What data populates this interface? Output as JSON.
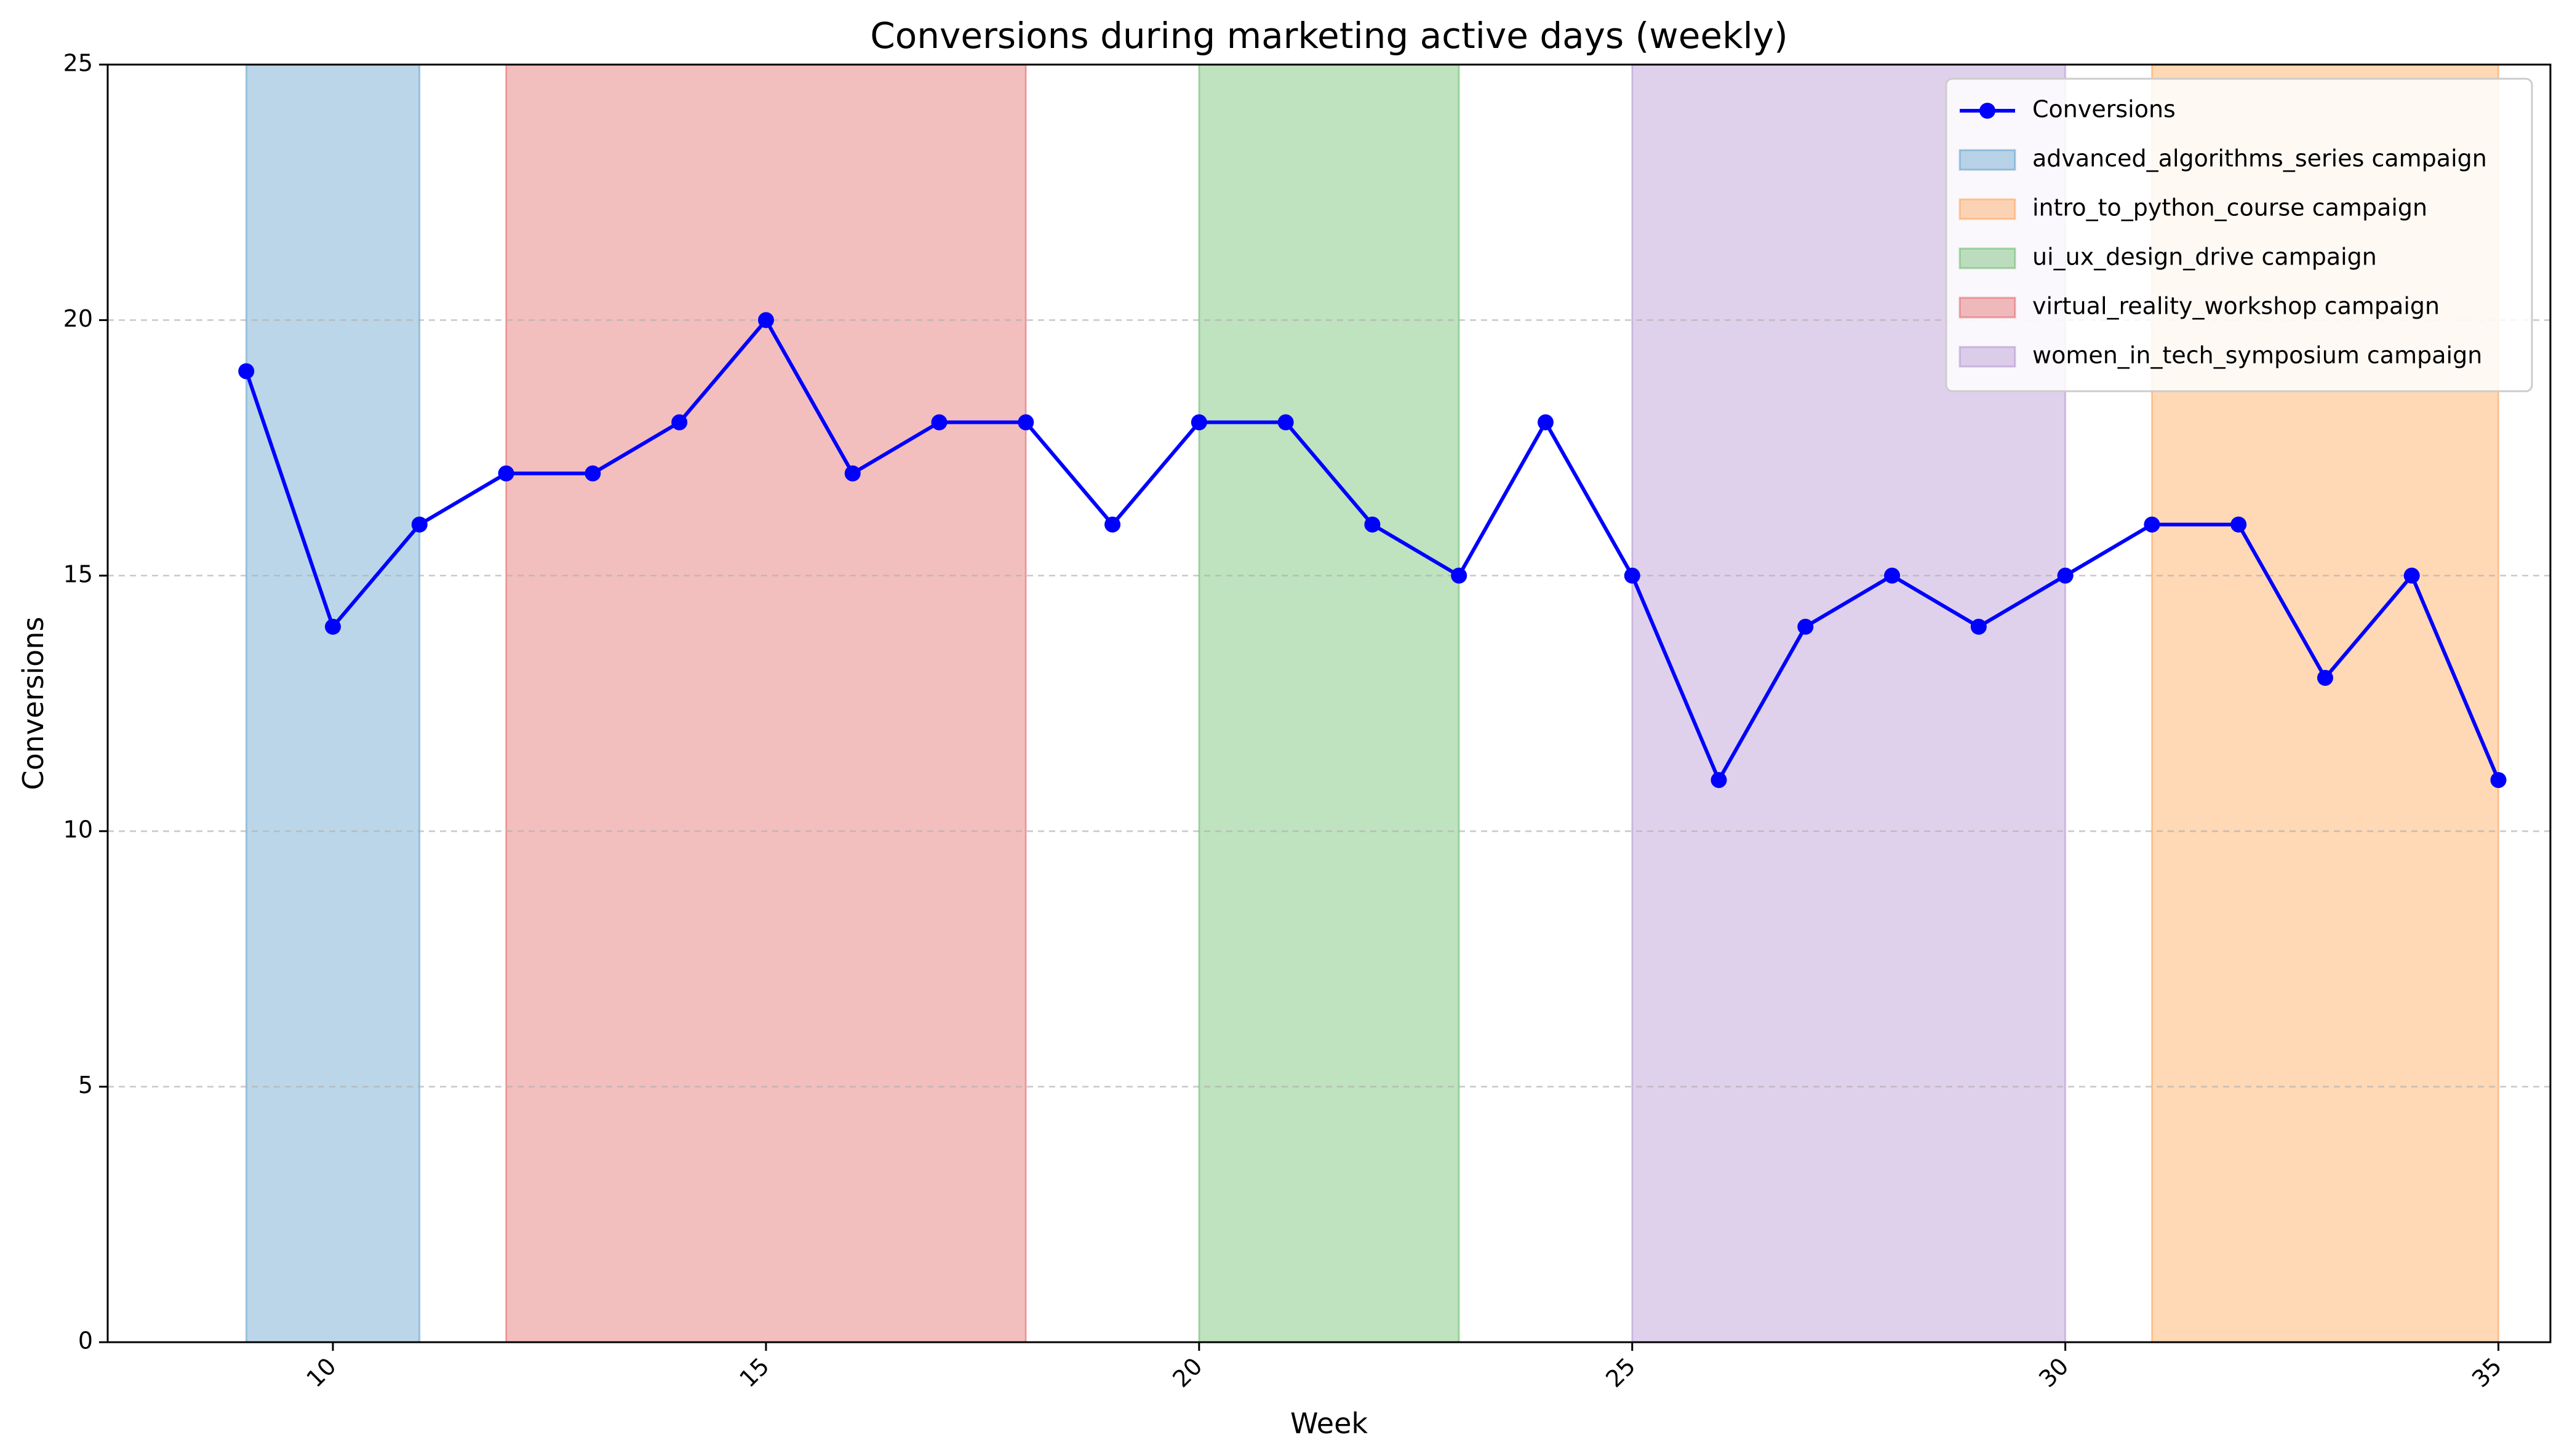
{
  "chart_data": {
    "type": "line",
    "title": "Conversions during marketing active days (weekly)",
    "xlabel": "Week",
    "ylabel": "Conversions",
    "xlim": [
      7.4,
      35.6
    ],
    "ylim": [
      0,
      25
    ],
    "xticks": [
      10,
      15,
      20,
      25,
      30,
      35
    ],
    "yticks": [
      0,
      5,
      10,
      15,
      20,
      25
    ],
    "grid": "y-dashed",
    "legend_position": "top-right",
    "series": [
      {
        "name": "Conversions",
        "color": "#0000ff",
        "x": [
          9,
          10,
          11,
          12,
          13,
          14,
          15,
          16,
          17,
          18,
          19,
          20,
          21,
          22,
          23,
          24,
          25,
          26,
          27,
          28,
          29,
          30,
          31,
          32,
          33,
          34,
          35
        ],
        "y": [
          19,
          14,
          16,
          17,
          17,
          18,
          20,
          17,
          18,
          18,
          16,
          18,
          18,
          16,
          15,
          18,
          15,
          11,
          14,
          15,
          14,
          15,
          16,
          16,
          13,
          15,
          11
        ]
      }
    ],
    "campaigns": [
      {
        "name": "advanced_algorithms_series campaign",
        "start": 9,
        "end": 11,
        "color": "#1f77b4"
      },
      {
        "name": "intro_to_python_course campaign",
        "start": 31,
        "end": 35,
        "color": "#ff7f0e"
      },
      {
        "name": "ui_ux_design_drive campaign",
        "start": 20,
        "end": 23,
        "color": "#2ca02c"
      },
      {
        "name": "virtual_reality_workshop campaign",
        "start": 12,
        "end": 18,
        "color": "#d62728"
      },
      {
        "name": "women_in_tech_symposium campaign",
        "start": 25,
        "end": 30,
        "color": "#9467bd"
      }
    ]
  }
}
